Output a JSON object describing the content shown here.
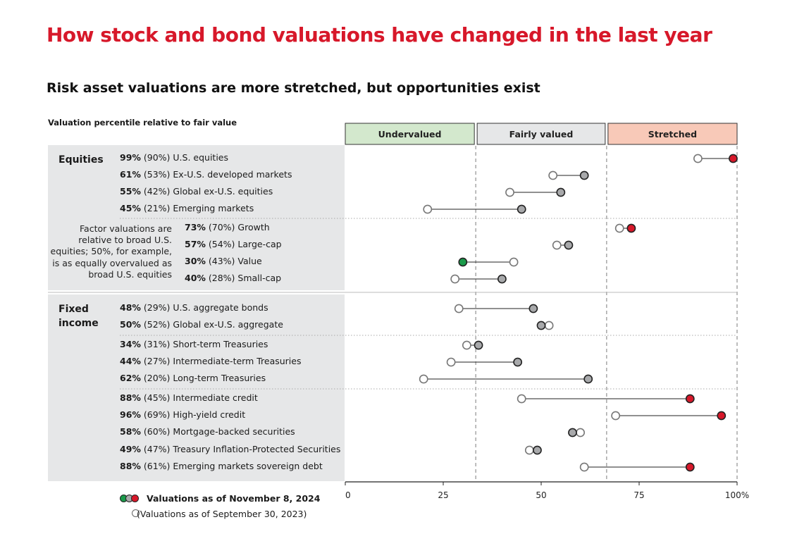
{
  "title": "How stock and bond valuations have changed in the last year",
  "subtitle": "Risk asset valuations are more stretched, but opportunities exist",
  "colors": {
    "brand": "#d7182a",
    "green": "#1a9a4a",
    "grey": "#a8a9ab",
    "undervalued_bg": "#d3e8cd",
    "fair_bg": "#e6e7e8",
    "stretched_bg": "#f8c9b8"
  },
  "chart_data": {
    "type": "dumbbell",
    "axis_caption": "Valuation percentile relative to fair value",
    "xlim": [
      0,
      100
    ],
    "ticks": [
      {
        "value": 0,
        "label": "0"
      },
      {
        "value": 25,
        "label": "25"
      },
      {
        "value": 50,
        "label": "50"
      },
      {
        "value": 75,
        "label": "75"
      },
      {
        "value": 100,
        "label": "100%"
      }
    ],
    "zones": [
      {
        "label": "Undervalued",
        "from": 0,
        "to": 33.3
      },
      {
        "label": "Fairly valued",
        "from": 33.3,
        "to": 66.7
      },
      {
        "label": "Stretched",
        "from": 66.7,
        "to": 100
      }
    ],
    "groups": [
      {
        "name": "Equities"
      },
      {
        "name": "Fixed",
        "name2": "income"
      }
    ],
    "note": [
      "Factor valuations are",
      "relative to broad U.S.",
      "equities; 50%, for example,",
      "is as equally overvalued as",
      "broad U.S. equities"
    ],
    "rows": [
      {
        "current_label": "99%",
        "previous_label": "(90%)",
        "name": "U.S. equities",
        "current": 99,
        "previous": 90,
        "status": "stretched"
      },
      {
        "current_label": "61%",
        "previous_label": "(53%)",
        "name": "Ex-U.S. developed markets",
        "current": 61,
        "previous": 53,
        "status": "fair"
      },
      {
        "current_label": "55%",
        "previous_label": "(42%)",
        "name": "Global ex-U.S. equities",
        "current": 55,
        "previous": 42,
        "status": "fair"
      },
      {
        "current_label": "45%",
        "previous_label": "(21%)",
        "name": "Emerging markets",
        "current": 45,
        "previous": 21,
        "status": "fair"
      },
      {
        "current_label": "73%",
        "previous_label": "(70%)",
        "name": "Growth",
        "current": 73,
        "previous": 70,
        "status": "stretched"
      },
      {
        "current_label": "57%",
        "previous_label": "(54%)",
        "name": "Large-cap",
        "current": 57,
        "previous": 54,
        "status": "fair"
      },
      {
        "current_label": "30%",
        "previous_label": "(43%)",
        "name": "Value",
        "current": 30,
        "previous": 43,
        "status": "undervalued"
      },
      {
        "current_label": "40%",
        "previous_label": "(28%)",
        "name": "Small-cap",
        "current": 40,
        "previous": 28,
        "status": "fair"
      },
      {
        "current_label": "48%",
        "previous_label": "(29%)",
        "name": "U.S. aggregate bonds",
        "current": 48,
        "previous": 29,
        "status": "fair"
      },
      {
        "current_label": "50%",
        "previous_label": "(52%)",
        "name": "Global ex-U.S. aggregate",
        "current": 50,
        "previous": 52,
        "status": "fair"
      },
      {
        "current_label": "34%",
        "previous_label": "(31%)",
        "name": "Short-term Treasuries",
        "current": 34,
        "previous": 31,
        "status": "fair"
      },
      {
        "current_label": "44%",
        "previous_label": "(27%)",
        "name": "Intermediate-term Treasuries",
        "current": 44,
        "previous": 27,
        "status": "fair"
      },
      {
        "current_label": "62%",
        "previous_label": "(20%)",
        "name": "Long-term Treasuries",
        "current": 62,
        "previous": 20,
        "status": "fair"
      },
      {
        "current_label": "88%",
        "previous_label": "(45%)",
        "name": "Intermediate credit",
        "current": 88,
        "previous": 45,
        "status": "stretched"
      },
      {
        "current_label": "96%",
        "previous_label": "(69%)",
        "name": "High-yield credit",
        "current": 96,
        "previous": 69,
        "status": "stretched"
      },
      {
        "current_label": "58%",
        "previous_label": "(60%)",
        "name": "Mortgage-backed securities",
        "current": 58,
        "previous": 60,
        "status": "fair"
      },
      {
        "current_label": "49%",
        "previous_label": "(47%)",
        "name": "Treasury Inflation-Protected Securities",
        "current": 49,
        "previous": 47,
        "status": "fair"
      },
      {
        "current_label": "88%",
        "previous_label": "(61%)",
        "name": "Emerging markets sovereign debt",
        "current": 88,
        "previous": 61,
        "status": "stretched"
      }
    ],
    "legend": {
      "current": "Valuations as of November 8, 2024",
      "previous": "(Valuations as of September 30, 2023)"
    }
  }
}
